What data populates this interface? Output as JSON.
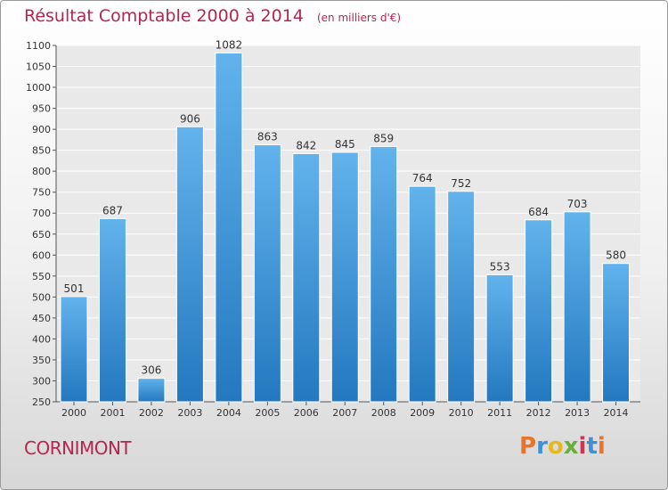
{
  "header": {
    "title": "Résultat Comptable 2000 à 2014",
    "unit": "(en milliers d'€)"
  },
  "footer": {
    "commune": "CORNIMONT",
    "logo_text": "Proxiti"
  },
  "colors": {
    "title": "#b4264d",
    "bar_top": "#62b3ec",
    "bar_bottom": "#2378bf",
    "logo_letters": [
      "#e8742a",
      "#3f8fd2",
      "#e6b81f",
      "#6aae3a",
      "#d2344f",
      "#3f8fd2",
      "#e8742a"
    ]
  },
  "chart_data": {
    "type": "bar",
    "title": "Résultat Comptable 2000 à 2014",
    "subtitle": "(en milliers d'€)",
    "categories": [
      "2000",
      "2001",
      "2002",
      "2003",
      "2004",
      "2005",
      "2006",
      "2007",
      "2008",
      "2009",
      "2010",
      "2011",
      "2012",
      "2013",
      "2014"
    ],
    "values": [
      501,
      687,
      306,
      906,
      1082,
      863,
      842,
      845,
      859,
      764,
      752,
      553,
      684,
      703,
      580
    ],
    "ylim": [
      250,
      1100
    ],
    "yticks": [
      250,
      300,
      350,
      400,
      450,
      500,
      550,
      600,
      650,
      700,
      750,
      800,
      850,
      900,
      950,
      1000,
      1050,
      1100
    ],
    "grid": true,
    "data_labels": true
  }
}
